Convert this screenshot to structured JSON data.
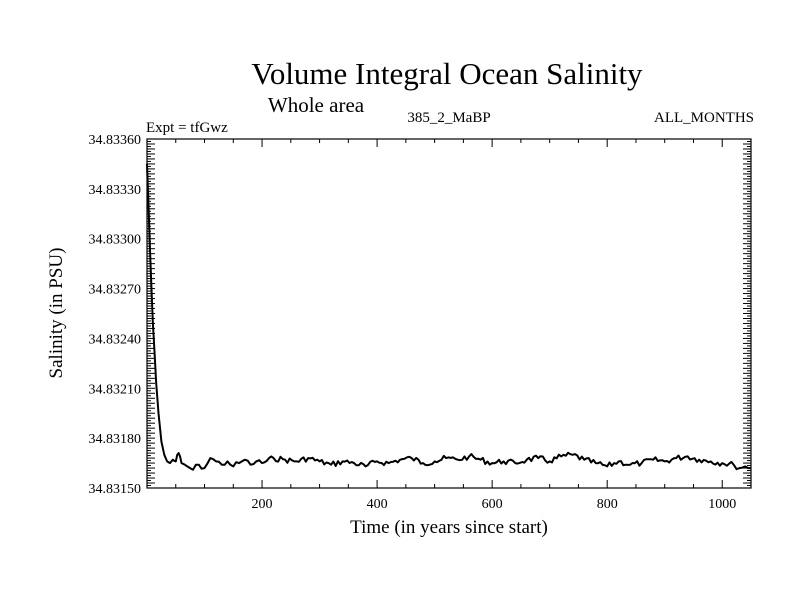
{
  "chart_data": {
    "type": "line",
    "title": "Volume Integral Ocean Salinity",
    "subtitle": "Whole area",
    "left_label": "Expt = tfGwz",
    "center_label": "385_2_MaBP",
    "right_label": "ALL_MONTHS",
    "xlabel": "Time (in years since start)",
    "ylabel": "Salinity (in PSU)",
    "xlim": [
      0,
      1050
    ],
    "ylim": [
      34.8315,
      34.8336
    ],
    "x_ticks": [
      200,
      400,
      600,
      800,
      1000
    ],
    "x_tick_labels": [
      "200",
      "400",
      "600",
      "800",
      "1000"
    ],
    "y_ticks": [
      34.8315,
      34.8318,
      34.8321,
      34.8324,
      34.8327,
      34.833,
      34.8333,
      34.8336
    ],
    "y_tick_labels": [
      "34.83150",
      "34.83180",
      "34.83210",
      "34.83240",
      "34.83270",
      "34.83300",
      "34.83330",
      "34.83360"
    ],
    "grid": false,
    "series": [
      {
        "name": "salinity",
        "color": "#000000",
        "x": [
          0,
          2,
          5,
          8,
          10,
          13,
          16,
          20,
          25,
          30,
          35,
          40,
          45,
          50,
          55,
          60,
          70,
          80,
          90,
          100,
          110,
          120,
          130,
          140,
          150,
          160,
          170,
          180,
          190,
          200,
          220,
          240,
          260,
          280,
          300,
          320,
          340,
          360,
          380,
          400,
          420,
          440,
          460,
          480,
          500,
          520,
          540,
          560,
          580,
          600,
          620,
          640,
          660,
          680,
          700,
          720,
          740,
          760,
          780,
          800,
          820,
          840,
          860,
          880,
          900,
          920,
          940,
          960,
          980,
          1000,
          1020,
          1030,
          1040,
          1050
        ],
        "values": [
          34.83345,
          34.83325,
          34.83295,
          34.83268,
          34.8325,
          34.83232,
          34.83213,
          34.83195,
          34.83178,
          34.8317,
          34.83166,
          34.83165,
          34.83167,
          34.83166,
          34.83171,
          34.83165,
          34.83163,
          34.83161,
          34.83164,
          34.83162,
          34.83168,
          34.83166,
          34.83164,
          34.83166,
          34.83163,
          34.83165,
          34.83167,
          34.83164,
          34.83166,
          34.83165,
          34.83168,
          34.83167,
          34.83166,
          34.83168,
          34.83166,
          34.83164,
          34.83166,
          34.83165,
          34.83163,
          34.83166,
          34.83165,
          34.83167,
          34.83168,
          34.83165,
          34.83166,
          34.83168,
          34.83167,
          34.83169,
          34.83167,
          34.83165,
          34.83166,
          34.83165,
          34.83167,
          34.83168,
          34.83166,
          34.83169,
          34.8317,
          34.83167,
          34.83165,
          34.83163,
          34.83166,
          34.83164,
          34.83165,
          34.83167,
          34.83166,
          34.83168,
          34.83169,
          34.83167,
          34.83166,
          34.83165,
          34.83164,
          34.83162,
          34.83163,
          34.83162
        ]
      }
    ]
  }
}
